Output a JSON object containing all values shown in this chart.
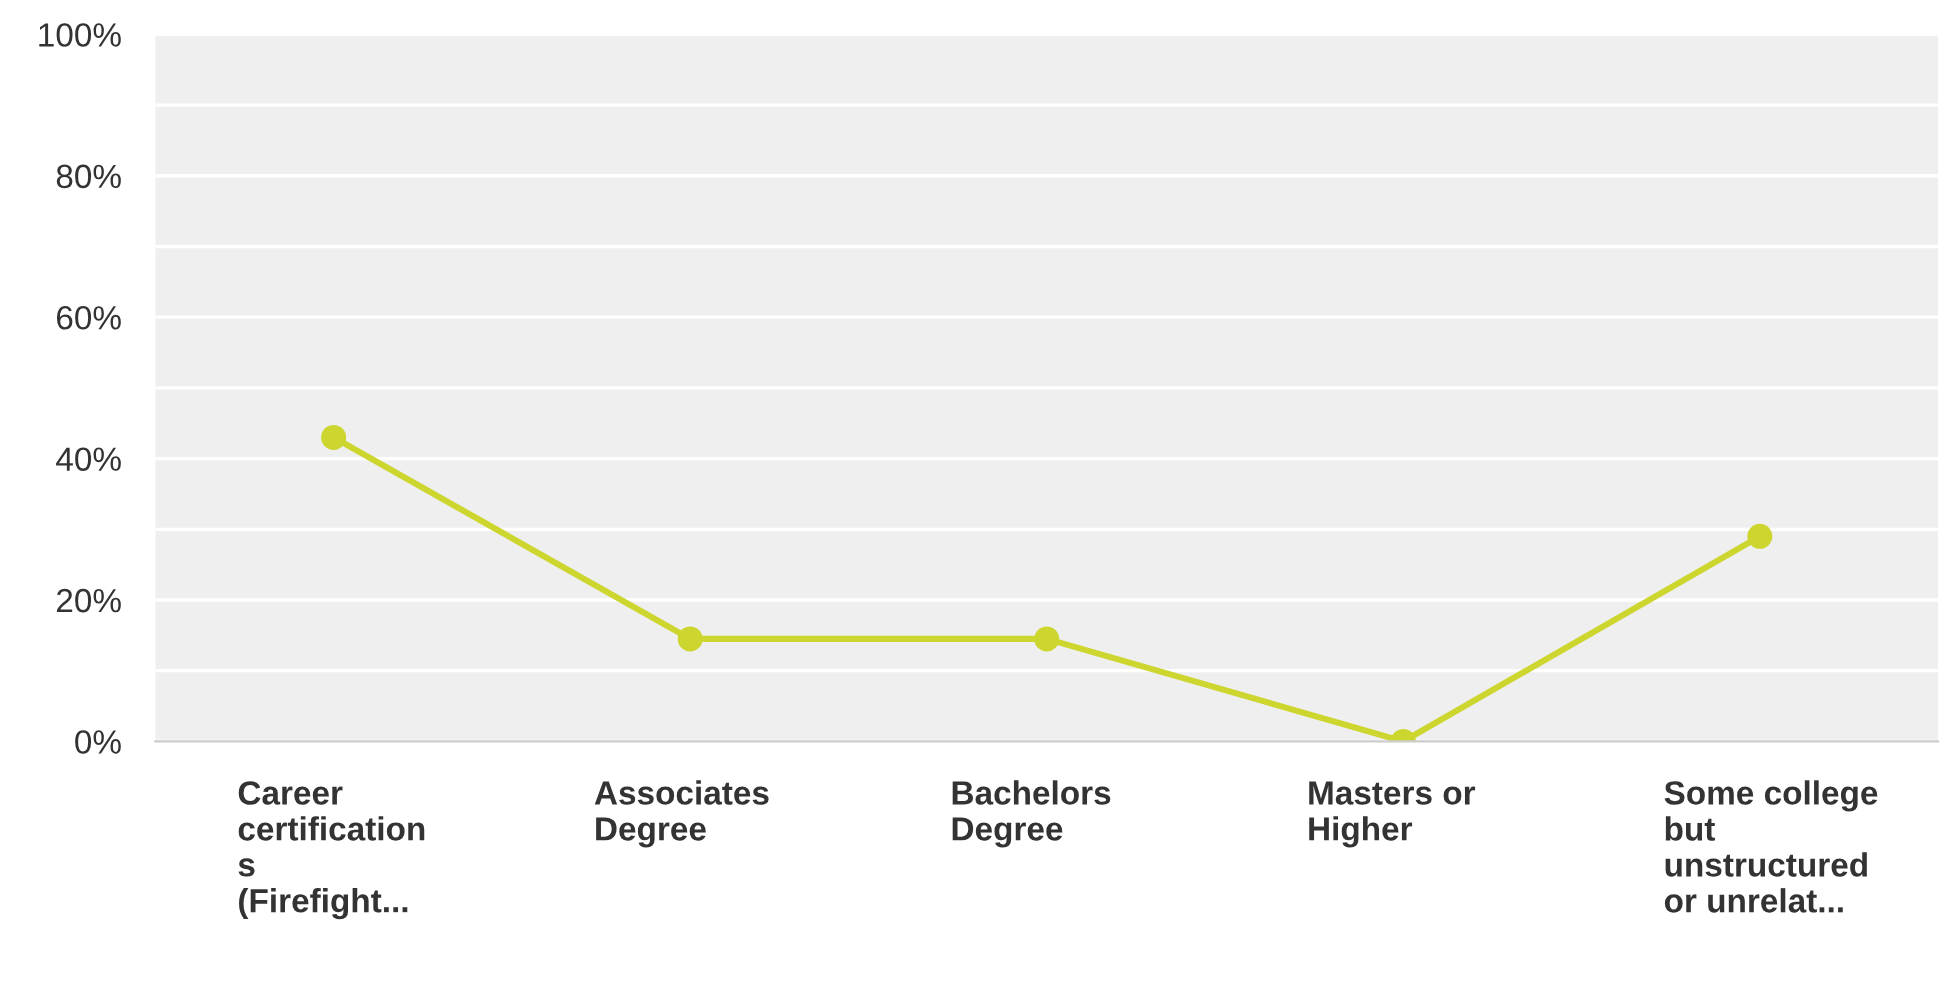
{
  "chart_data": {
    "type": "line",
    "categories": [
      "Career\ncertification\ns\n(Firefight...",
      "Associates\nDegree",
      "Bachelors\nDegree",
      "Masters or\nHigher",
      "Some college\nbut\nunstructured\nor unrelat..."
    ],
    "series": [
      {
        "color": "#ccd62e",
        "values": [
          43,
          14.5,
          14.5,
          0,
          29
        ]
      }
    ],
    "ylim": [
      0,
      100
    ],
    "yticks": [
      {
        "value": 0,
        "label": "0%"
      },
      {
        "value": 10,
        "label": null
      },
      {
        "value": 20,
        "label": "20%"
      },
      {
        "value": 30,
        "label": null
      },
      {
        "value": 40,
        "label": "40%"
      },
      {
        "value": 50,
        "label": null
      },
      {
        "value": 60,
        "label": "60%"
      },
      {
        "value": 70,
        "label": null
      },
      {
        "value": 80,
        "label": "80%"
      },
      {
        "value": 90,
        "label": null
      },
      {
        "value": 100,
        "label": "100%"
      }
    ],
    "grid": "y",
    "marker": "circle",
    "line_style": "solid",
    "legend": false
  }
}
